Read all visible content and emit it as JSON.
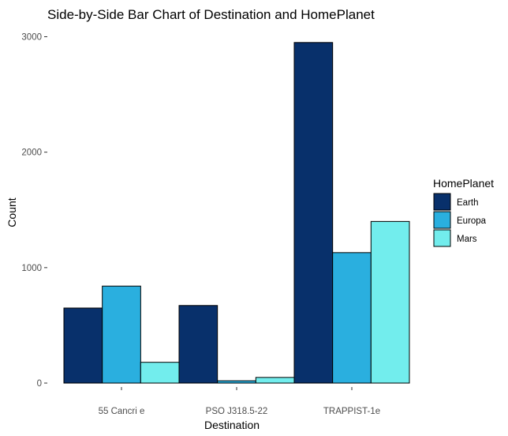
{
  "chart_data": {
    "type": "bar",
    "title": "Side-by-Side Bar Chart of Destination and HomePlanet",
    "xlabel": "Destination",
    "ylabel": "Count",
    "categories": [
      "55 Cancri e",
      "PSO J318.5-22",
      "TRAPPIST-1e"
    ],
    "series": [
      {
        "name": "Earth",
        "color": "#08306b",
        "values": [
          650,
          672,
          2950
        ]
      },
      {
        "name": "Europa",
        "color": "#2aafdf",
        "values": [
          840,
          20,
          1130
        ]
      },
      {
        "name": "Mars",
        "color": "#72eded",
        "values": [
          180,
          49,
          1400
        ]
      }
    ],
    "ylim": [
      0,
      3000
    ],
    "yticks": [
      0,
      1000,
      2000,
      3000
    ],
    "grid": false,
    "legend": {
      "title": "HomePlanet",
      "position": "right"
    }
  }
}
